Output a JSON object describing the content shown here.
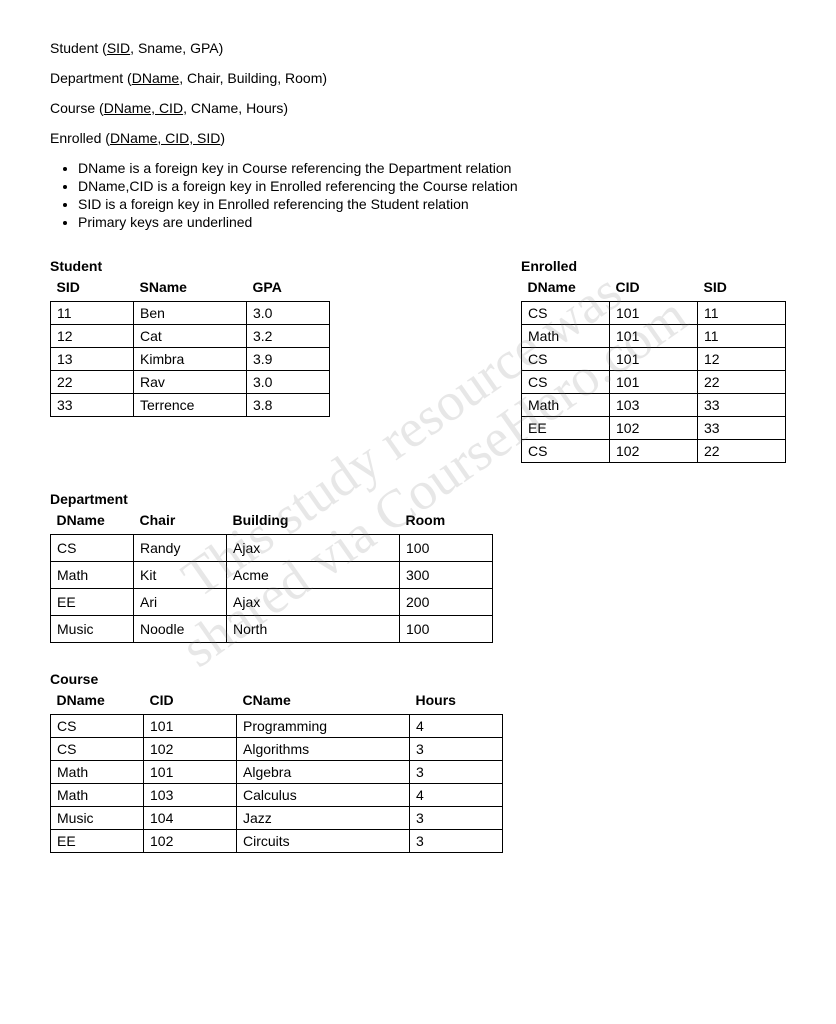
{
  "schema": {
    "student": {
      "name": "Student",
      "pk": "SID",
      "rest": ", Sname, GPA)"
    },
    "department": {
      "name": "Department",
      "pk": "DName",
      "rest": ", Chair, Building, Room)"
    },
    "course": {
      "name": "Course",
      "pk": "DName, CID",
      "rest": ", CName, Hours)"
    },
    "enrolled": {
      "name": "Enrolled",
      "pk": "DName, CID, SID",
      "rest": ")"
    }
  },
  "bullets": [
    "DName is a foreign key in Course referencing the Department relation",
    "DName,CID is a foreign key in Enrolled referencing the Course relation",
    "SID is a foreign key in Enrolled referencing the Student relation",
    "Primary keys are underlined"
  ],
  "student": {
    "title": "Student",
    "columns": [
      "SID",
      "SName",
      "GPA"
    ],
    "rows": [
      [
        "11",
        "Ben",
        "3.0"
      ],
      [
        "12",
        "Cat",
        "3.2"
      ],
      [
        "13",
        "Kimbra",
        "3.9"
      ],
      [
        "22",
        "Rav",
        "3.0"
      ],
      [
        "33",
        "Terrence",
        "3.8"
      ]
    ]
  },
  "enrolled": {
    "title": "Enrolled",
    "columns": [
      "DName",
      "CID",
      "SID"
    ],
    "rows": [
      [
        "CS",
        "101",
        "11"
      ],
      [
        "Math",
        "101",
        "11"
      ],
      [
        "CS",
        "101",
        "12"
      ],
      [
        "CS",
        "101",
        "22"
      ],
      [
        "Math",
        "103",
        "33"
      ],
      [
        "EE",
        "102",
        "33"
      ],
      [
        "CS",
        "102",
        "22"
      ]
    ]
  },
  "department": {
    "title": "Department",
    "columns": [
      "DName",
      "Chair",
      "Building",
      "Room"
    ],
    "rows": [
      [
        "CS",
        "Randy",
        "Ajax",
        "100"
      ],
      [
        "Math",
        "Kit",
        "Acme",
        "300"
      ],
      [
        "EE",
        "Ari",
        "Ajax",
        "200"
      ],
      [
        "Music",
        "Noodle",
        "North",
        "100"
      ]
    ]
  },
  "course": {
    "title": "Course",
    "columns": [
      "DName",
      "CID",
      "CName",
      "Hours"
    ],
    "rows": [
      [
        "CS",
        "101",
        "Programming",
        "4"
      ],
      [
        "CS",
        "102",
        "Algorithms",
        "3"
      ],
      [
        "Math",
        "101",
        "Algebra",
        "3"
      ],
      [
        "Math",
        "103",
        "Calculus",
        "4"
      ],
      [
        "Music",
        "104",
        "Jazz",
        "3"
      ],
      [
        "EE",
        "102",
        "Circuits",
        "3"
      ]
    ]
  },
  "watermark": {
    "line1": "This study resource was",
    "line2": "shared via CourseHero.com"
  },
  "colors": {
    "text": "#000000",
    "background": "#ffffff",
    "border": "#000000",
    "watermark": "rgba(120,120,120,0.18)"
  }
}
